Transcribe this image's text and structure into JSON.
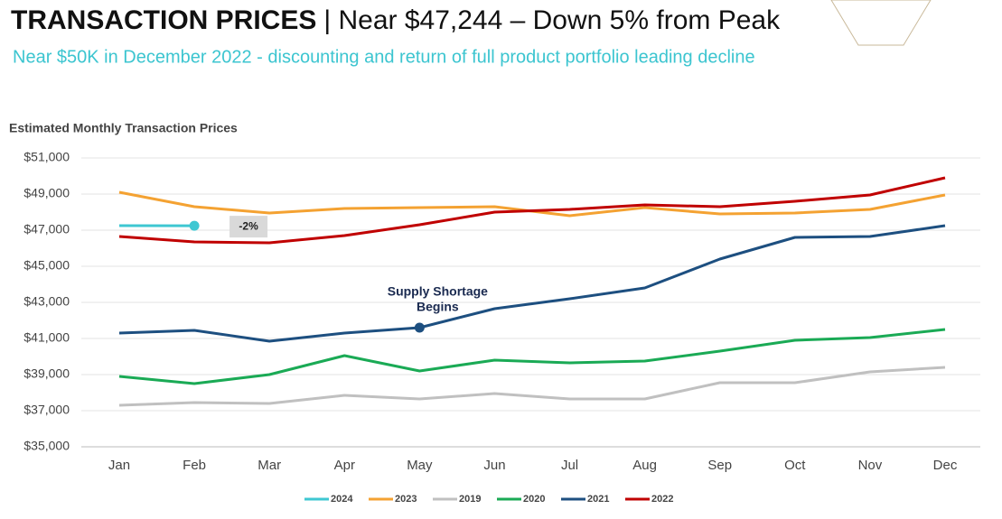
{
  "chart_data": {
    "type": "line",
    "title": "TRANSACTION PRICES",
    "title_detail": "| Near $47,244 – Down 5% from Peak",
    "subtitle": "Near $50K in December 2022 - discounting and return of full product portfolio leading decline",
    "chart_label": "Estimated Monthly Transaction Prices",
    "categories": [
      "Jan",
      "Feb",
      "Mar",
      "Apr",
      "May",
      "Jun",
      "Jul",
      "Aug",
      "Sep",
      "Oct",
      "Nov",
      "Dec"
    ],
    "series": [
      {
        "name": "2024",
        "color": "#3ec7d2",
        "values": [
          47250,
          47244,
          null,
          null,
          null,
          null,
          null,
          null,
          null,
          null,
          null,
          null
        ]
      },
      {
        "name": "2023",
        "color": "#f4a232",
        "values": [
          49100,
          48300,
          47950,
          48200,
          48250,
          48300,
          47800,
          48250,
          47900,
          47950,
          48150,
          48950
        ]
      },
      {
        "name": "2019",
        "color": "#c0c0c0",
        "values": [
          37300,
          37450,
          37400,
          37850,
          37650,
          37950,
          37650,
          37650,
          38550,
          38550,
          39150,
          39400
        ]
      },
      {
        "name": "2020",
        "color": "#1aaa55",
        "values": [
          38900,
          38500,
          39000,
          40050,
          39200,
          39800,
          39650,
          39750,
          40300,
          40900,
          41050,
          41500
        ]
      },
      {
        "name": "2021",
        "color": "#1d4f80",
        "values": [
          41300,
          41450,
          40850,
          41300,
          41600,
          42650,
          43200,
          43800,
          45400,
          46600,
          46650,
          47250
        ]
      },
      {
        "name": "2022",
        "color": "#c00000",
        "values": [
          46650,
          46350,
          46300,
          46700,
          47300,
          48000,
          48150,
          48400,
          48300,
          48600,
          48950,
          49900
        ]
      }
    ],
    "annotations": [
      {
        "text": "-2%"
      },
      {
        "lines": [
          "Supply Shortage",
          "Begins"
        ]
      }
    ],
    "ylim": [
      35000,
      51000
    ],
    "yticks": [
      {
        "value": 35000,
        "label": "$35,000"
      },
      {
        "value": 37000,
        "label": "$37,000"
      },
      {
        "value": 39000,
        "label": "$39,000"
      },
      {
        "value": 41000,
        "label": "$41,000"
      },
      {
        "value": 43000,
        "label": "$43,000"
      },
      {
        "value": 45000,
        "label": "$45,000"
      },
      {
        "value": 47000,
        "label": "$47,000"
      },
      {
        "value": 49000,
        "label": "$49,000"
      },
      {
        "value": 51000,
        "label": "$51,000"
      }
    ],
    "grid": true,
    "legend": "bottom"
  }
}
